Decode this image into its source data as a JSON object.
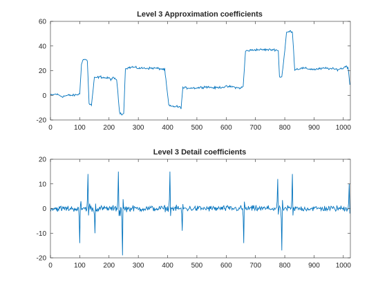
{
  "chart_data": [
    {
      "type": "line",
      "title": "Level 3 Approximation coefficients",
      "xlabel": "",
      "ylabel": "",
      "xlim": [
        0,
        1024
      ],
      "ylim": [
        -20,
        60
      ],
      "xticks": [
        0,
        100,
        200,
        300,
        400,
        500,
        600,
        700,
        800,
        900,
        1000
      ],
      "yticks": [
        -20,
        0,
        20,
        40,
        60
      ],
      "grid": false,
      "line_color": "#0072BD",
      "series": [
        {
          "x": [
            0,
            20,
            40,
            60,
            80,
            100,
            106,
            112,
            120,
            126,
            132,
            140,
            150,
            170,
            190,
            200,
            206,
            214,
            226,
            236,
            244,
            250,
            256,
            260,
            280,
            300,
            330,
            360,
            390,
            404,
            410,
            430,
            446,
            452,
            470,
            500,
            530,
            560,
            600,
            620,
            640,
            650,
            658,
            666,
            700,
            740,
            770,
            778,
            782,
            790,
            800,
            806,
            820,
            826,
            834,
            860,
            900,
            940,
            980,
            1000,
            1010,
            1016,
            1020,
            1023
          ],
          "y": [
            0,
            1,
            -1,
            0,
            0,
            1,
            26,
            29,
            29,
            28,
            -7,
            -8,
            14,
            15,
            14,
            14,
            13,
            14,
            13,
            -14,
            -15,
            -15,
            22,
            22,
            23,
            22,
            22,
            22,
            21,
            -8,
            -9,
            -9,
            -10,
            6,
            6,
            6,
            7,
            6,
            7,
            7,
            6,
            6,
            7,
            36,
            37,
            37,
            37,
            36,
            15,
            15,
            36,
            51,
            52,
            52,
            21,
            22,
            21,
            22,
            21,
            22,
            24,
            22,
            14,
            6
          ]
        }
      ]
    },
    {
      "type": "line",
      "title": "Level 3 Detail coefficients",
      "xlabel": "",
      "ylabel": "",
      "xlim": [
        0,
        1024
      ],
      "ylim": [
        -20,
        20
      ],
      "xticks": [
        0,
        100,
        200,
        300,
        400,
        500,
        600,
        700,
        800,
        900,
        1000
      ],
      "yticks": [
        -20,
        -10,
        0,
        10,
        20
      ],
      "grid": false,
      "line_color": "#0072BD",
      "series": [
        {
          "noise": 1.2,
          "spikes": [
            [
              100,
              -14
            ],
            [
              104,
              3
            ],
            [
              128,
              14
            ],
            [
              134,
              2
            ],
            [
              152,
              -10
            ],
            [
              232,
              15
            ],
            [
              238,
              -3
            ],
            [
              246,
              -19
            ],
            [
              408,
              15
            ],
            [
              450,
              -9
            ],
            [
              660,
              -14
            ],
            [
              776,
              12
            ],
            [
              790,
              -17
            ],
            [
              826,
              14
            ],
            [
              1020,
              10
            ]
          ]
        }
      ]
    }
  ]
}
